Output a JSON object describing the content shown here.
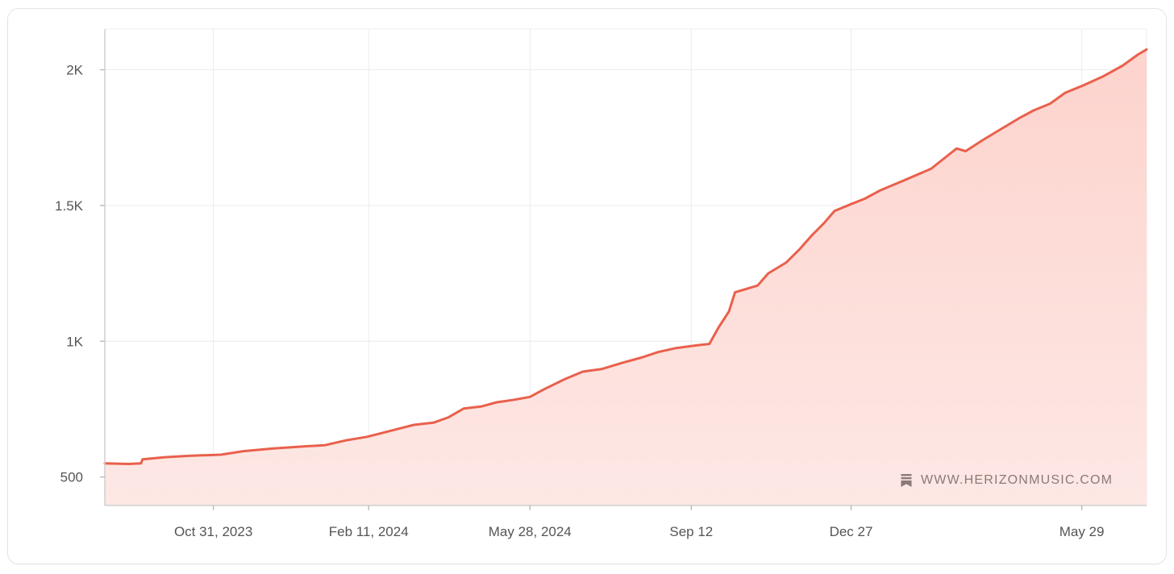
{
  "colors": {
    "line": "#e9604c",
    "fill_top": "#fdd3cd",
    "fill_bottom": "#fde8e5",
    "grid": "#ececec",
    "text": "#555555"
  },
  "watermark": {
    "icon": "bookmark-icon",
    "text": "WWW.HERIZONMUSIC.COM"
  },
  "chart_data": {
    "type": "area",
    "title": "",
    "xlabel": "",
    "ylabel": "",
    "grid": true,
    "legend": "none",
    "xlim": [
      "2023-08-20",
      "2025-07-11"
    ],
    "ylim": [
      395,
      2150
    ],
    "x_ticks": [
      {
        "date": "2023-10-31",
        "label": "Oct 31, 2023"
      },
      {
        "date": "2024-02-11",
        "label": "Feb 11, 2024"
      },
      {
        "date": "2024-05-28",
        "label": "May 28, 2024"
      },
      {
        "date": "2024-09-12",
        "label": "Sep 12"
      },
      {
        "date": "2024-12-27",
        "label": "Dec 27"
      },
      {
        "date": "2025-05-29",
        "label": "May 29"
      }
    ],
    "y_ticks": [
      {
        "value": 500,
        "label": "500"
      },
      {
        "value": 1000,
        "label": "1K"
      },
      {
        "value": 1500,
        "label": "1.5K"
      },
      {
        "value": 2000,
        "label": "2K"
      }
    ],
    "series": [
      {
        "points": [
          [
            "2023-08-20",
            550
          ],
          [
            "2023-09-05",
            548
          ],
          [
            "2023-09-13",
            550
          ],
          [
            "2023-09-14",
            565
          ],
          [
            "2023-09-29",
            573
          ],
          [
            "2023-10-15",
            578
          ],
          [
            "2023-11-05",
            582
          ],
          [
            "2023-11-20",
            595
          ],
          [
            "2023-12-10",
            605
          ],
          [
            "2023-12-31",
            613
          ],
          [
            "2024-01-13",
            617
          ],
          [
            "2024-01-27",
            635
          ],
          [
            "2024-02-10",
            648
          ],
          [
            "2024-02-27",
            672
          ],
          [
            "2024-03-12",
            692
          ],
          [
            "2024-03-25",
            700
          ],
          [
            "2024-04-04",
            720
          ],
          [
            "2024-04-14",
            752
          ],
          [
            "2024-04-26",
            760
          ],
          [
            "2024-05-06",
            775
          ],
          [
            "2024-05-18",
            785
          ],
          [
            "2024-05-28",
            795
          ],
          [
            "2024-06-06",
            822
          ],
          [
            "2024-06-20",
            860
          ],
          [
            "2024-07-02",
            888
          ],
          [
            "2024-07-15",
            898
          ],
          [
            "2024-07-28",
            920
          ],
          [
            "2024-08-10",
            940
          ],
          [
            "2024-08-21",
            960
          ],
          [
            "2024-09-02",
            975
          ],
          [
            "2024-09-16",
            985
          ],
          [
            "2024-09-24",
            990
          ],
          [
            "2024-09-30",
            1050
          ],
          [
            "2024-10-07",
            1110
          ],
          [
            "2024-10-11",
            1180
          ],
          [
            "2024-10-20",
            1195
          ],
          [
            "2024-10-26",
            1205
          ],
          [
            "2024-11-02",
            1250
          ],
          [
            "2024-11-14",
            1290
          ],
          [
            "2024-11-23",
            1340
          ],
          [
            "2024-12-01",
            1390
          ],
          [
            "2024-12-09",
            1435
          ],
          [
            "2024-12-16",
            1480
          ],
          [
            "2024-12-27",
            1505
          ],
          [
            "2025-01-05",
            1525
          ],
          [
            "2025-01-15",
            1555
          ],
          [
            "2025-01-30",
            1590
          ],
          [
            "2025-02-18",
            1635
          ],
          [
            "2025-02-27",
            1675
          ],
          [
            "2025-03-07",
            1710
          ],
          [
            "2025-03-13",
            1700
          ],
          [
            "2025-03-24",
            1740
          ],
          [
            "2025-04-05",
            1780
          ],
          [
            "2025-04-17",
            1820
          ],
          [
            "2025-04-27",
            1850
          ],
          [
            "2025-05-08",
            1875
          ],
          [
            "2025-05-18",
            1915
          ],
          [
            "2025-05-29",
            1940
          ],
          [
            "2025-06-12",
            1975
          ],
          [
            "2025-06-25",
            2015
          ],
          [
            "2025-07-05",
            2055
          ],
          [
            "2025-07-11",
            2075
          ]
        ]
      }
    ]
  }
}
